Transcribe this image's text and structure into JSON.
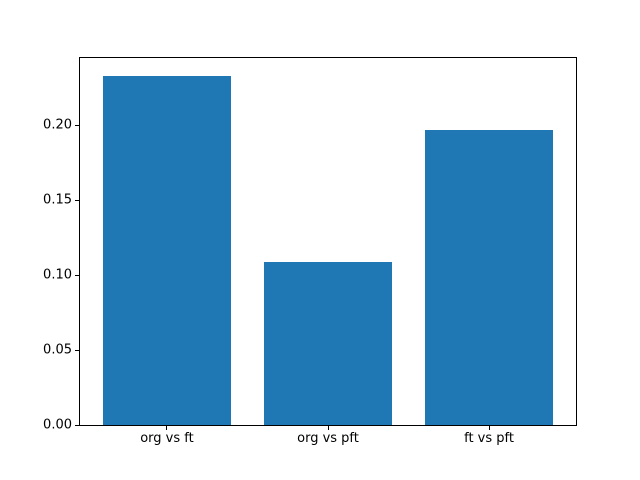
{
  "chart_data": {
    "type": "bar",
    "title": "",
    "xlabel": "",
    "ylabel": "",
    "categories": [
      "org vs ft",
      "org vs pft",
      "ft vs pft"
    ],
    "values": [
      0.233,
      0.109,
      0.197
    ],
    "ylim": [
      0,
      0.245
    ],
    "yticks": [
      0,
      0.05,
      0.1,
      0.15,
      0.2
    ],
    "ytick_labels": [
      "0.00",
      "0.05",
      "0.10",
      "0.15",
      "0.20"
    ],
    "bar_color": "#1f77b4",
    "bar_width_fraction": 0.8,
    "spine_color": "#000000",
    "background_color": "#ffffff",
    "grid": false,
    "legend": "none"
  }
}
